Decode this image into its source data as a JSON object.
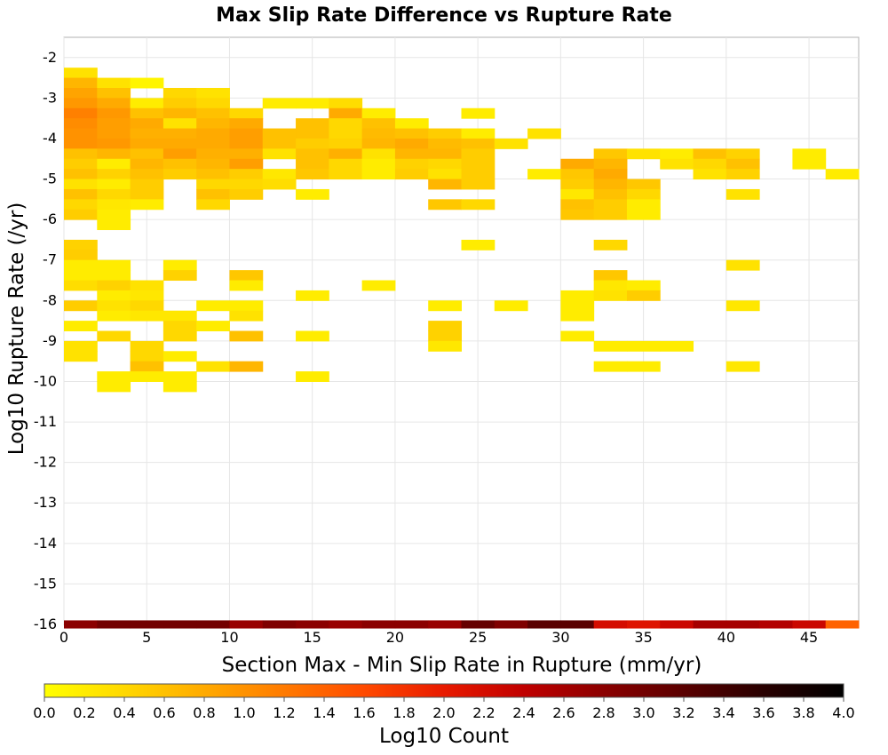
{
  "chart_data": {
    "type": "heatmap",
    "title": "Max Slip Rate Difference vs Rupture Rate",
    "xlabel": "Section Max - Min Slip Rate in Rupture (mm/yr)",
    "ylabel": "Log10 Rupture Rate (/yr)",
    "colorbar_label": "Log10 Count",
    "xlim": [
      0,
      48
    ],
    "ylim": [
      -16,
      -1.5
    ],
    "x_bin_width": 2,
    "y_bin_height": 0.25,
    "xticks": [
      0,
      5,
      10,
      15,
      20,
      25,
      30,
      35,
      40,
      45
    ],
    "yticks": [
      -2,
      -3,
      -4,
      -5,
      -6,
      -7,
      -8,
      -9,
      -10,
      -11,
      -12,
      -13,
      -14,
      -15,
      -16
    ],
    "colorbar_range": [
      0.0,
      4.0
    ],
    "colorbar_ticks": [
      "0.0",
      "0.2",
      "0.4",
      "0.6",
      "0.8",
      "1.0",
      "1.2",
      "1.4",
      "1.6",
      "1.8",
      "2.0",
      "2.2",
      "2.4",
      "2.6",
      "2.8",
      "3.0",
      "3.2",
      "3.4",
      "3.6",
      "3.8",
      "4.0"
    ],
    "grid": true,
    "colormap": [
      "#ffff00",
      "#ffd800",
      "#ffaa00",
      "#ff7a00",
      "#ff4a00",
      "#e81a00",
      "#c00000",
      "#8b0000",
      "#5a0000",
      "#280000",
      "#000000"
    ],
    "cells": [
      [
        0,
        -2.25,
        0.3
      ],
      [
        0,
        -2.5,
        0.7
      ],
      [
        2,
        -2.5,
        0.3
      ],
      [
        4,
        -2.5,
        0.1
      ],
      [
        0,
        -2.75,
        0.85
      ],
      [
        2,
        -2.75,
        0.6
      ],
      [
        6,
        -2.75,
        0.4
      ],
      [
        8,
        -2.75,
        0.3
      ],
      [
        0,
        -3.0,
        0.95
      ],
      [
        2,
        -3.0,
        0.8
      ],
      [
        4,
        -3.0,
        0.2
      ],
      [
        6,
        -3.0,
        0.5
      ],
      [
        8,
        -3.0,
        0.4
      ],
      [
        12,
        -3.0,
        0.2
      ],
      [
        14,
        -3.0,
        0.2
      ],
      [
        16,
        -3.0,
        0.35
      ],
      [
        0,
        -3.25,
        1.15
      ],
      [
        2,
        -3.25,
        0.95
      ],
      [
        4,
        -3.25,
        0.6
      ],
      [
        6,
        -3.25,
        0.7
      ],
      [
        8,
        -3.25,
        0.6
      ],
      [
        10,
        -3.25,
        0.4
      ],
      [
        16,
        -3.25,
        0.8
      ],
      [
        18,
        -3.25,
        0.2
      ],
      [
        24,
        -3.25,
        0.2
      ],
      [
        0,
        -3.5,
        1.05
      ],
      [
        2,
        -3.5,
        0.9
      ],
      [
        4,
        -3.5,
        0.8
      ],
      [
        6,
        -3.5,
        0.3
      ],
      [
        8,
        -3.5,
        0.7
      ],
      [
        10,
        -3.5,
        0.8
      ],
      [
        14,
        -3.5,
        0.6
      ],
      [
        16,
        -3.5,
        0.4
      ],
      [
        18,
        -3.5,
        0.6
      ],
      [
        20,
        -3.5,
        0.2
      ],
      [
        0,
        -3.75,
        1.0
      ],
      [
        2,
        -3.75,
        0.9
      ],
      [
        4,
        -3.75,
        0.75
      ],
      [
        6,
        -3.75,
        0.75
      ],
      [
        8,
        -3.75,
        0.8
      ],
      [
        10,
        -3.75,
        0.9
      ],
      [
        12,
        -3.75,
        0.6
      ],
      [
        14,
        -3.75,
        0.6
      ],
      [
        16,
        -3.75,
        0.4
      ],
      [
        18,
        -3.75,
        0.65
      ],
      [
        20,
        -3.75,
        0.6
      ],
      [
        22,
        -3.75,
        0.5
      ],
      [
        24,
        -3.75,
        0.2
      ],
      [
        28,
        -3.75,
        0.3
      ],
      [
        0,
        -4.0,
        1.0
      ],
      [
        2,
        -4.0,
        0.95
      ],
      [
        4,
        -4.0,
        0.8
      ],
      [
        6,
        -4.0,
        0.8
      ],
      [
        8,
        -4.0,
        0.8
      ],
      [
        10,
        -4.0,
        0.9
      ],
      [
        12,
        -4.0,
        0.6
      ],
      [
        14,
        -4.0,
        0.5
      ],
      [
        16,
        -4.0,
        0.45
      ],
      [
        18,
        -4.0,
        0.7
      ],
      [
        20,
        -4.0,
        0.8
      ],
      [
        22,
        -4.0,
        0.65
      ],
      [
        24,
        -4.0,
        0.6
      ],
      [
        26,
        -4.0,
        0.3
      ],
      [
        0,
        -4.25,
        0.6
      ],
      [
        2,
        -4.25,
        0.7
      ],
      [
        4,
        -4.25,
        0.6
      ],
      [
        6,
        -4.25,
        0.9
      ],
      [
        8,
        -4.25,
        0.75
      ],
      [
        10,
        -4.25,
        0.75
      ],
      [
        12,
        -4.25,
        0.3
      ],
      [
        14,
        -4.25,
        0.6
      ],
      [
        16,
        -4.25,
        0.75
      ],
      [
        18,
        -4.25,
        0.3
      ],
      [
        20,
        -4.25,
        0.7
      ],
      [
        22,
        -4.25,
        0.7
      ],
      [
        24,
        -4.25,
        0.5
      ],
      [
        32,
        -4.25,
        0.55
      ],
      [
        34,
        -4.25,
        0.3
      ],
      [
        36,
        -4.25,
        0.2
      ],
      [
        38,
        -4.25,
        0.6
      ],
      [
        40,
        -4.25,
        0.45
      ],
      [
        44,
        -4.25,
        0.2
      ],
      [
        0,
        -4.5,
        0.5
      ],
      [
        2,
        -4.5,
        0.2
      ],
      [
        4,
        -4.5,
        0.7
      ],
      [
        6,
        -4.5,
        0.6
      ],
      [
        8,
        -4.5,
        0.7
      ],
      [
        10,
        -4.5,
        0.9
      ],
      [
        14,
        -4.5,
        0.6
      ],
      [
        16,
        -4.5,
        0.4
      ],
      [
        18,
        -4.5,
        0.2
      ],
      [
        20,
        -4.5,
        0.45
      ],
      [
        22,
        -4.5,
        0.4
      ],
      [
        24,
        -4.5,
        0.5
      ],
      [
        30,
        -4.5,
        0.8
      ],
      [
        32,
        -4.5,
        0.7
      ],
      [
        36,
        -4.5,
        0.3
      ],
      [
        38,
        -4.5,
        0.4
      ],
      [
        40,
        -4.5,
        0.6
      ],
      [
        44,
        -4.5,
        0.2
      ],
      [
        0,
        -4.75,
        0.6
      ],
      [
        2,
        -4.75,
        0.45
      ],
      [
        4,
        -4.75,
        0.6
      ],
      [
        6,
        -4.75,
        0.5
      ],
      [
        8,
        -4.75,
        0.6
      ],
      [
        10,
        -4.75,
        0.5
      ],
      [
        12,
        -4.75,
        0.25
      ],
      [
        14,
        -4.75,
        0.55
      ],
      [
        16,
        -4.75,
        0.4
      ],
      [
        18,
        -4.75,
        0.2
      ],
      [
        20,
        -4.75,
        0.5
      ],
      [
        22,
        -4.75,
        0.3
      ],
      [
        24,
        -4.75,
        0.5
      ],
      [
        28,
        -4.75,
        0.2
      ],
      [
        30,
        -4.75,
        0.55
      ],
      [
        32,
        -4.75,
        0.8
      ],
      [
        38,
        -4.75,
        0.3
      ],
      [
        40,
        -4.75,
        0.45
      ],
      [
        46,
        -4.75,
        0.2
      ],
      [
        0,
        -5.0,
        0.3
      ],
      [
        2,
        -5.0,
        0.2
      ],
      [
        4,
        -5.0,
        0.5
      ],
      [
        8,
        -5.0,
        0.4
      ],
      [
        10,
        -5.0,
        0.4
      ],
      [
        12,
        -5.0,
        0.35
      ],
      [
        22,
        -5.0,
        0.7
      ],
      [
        24,
        -5.0,
        0.5
      ],
      [
        30,
        -5.0,
        0.5
      ],
      [
        32,
        -5.0,
        0.7
      ],
      [
        34,
        -5.0,
        0.55
      ],
      [
        0,
        -5.25,
        0.6
      ],
      [
        2,
        -5.25,
        0.4
      ],
      [
        4,
        -5.25,
        0.5
      ],
      [
        8,
        -5.25,
        0.6
      ],
      [
        10,
        -5.25,
        0.5
      ],
      [
        14,
        -5.25,
        0.2
      ],
      [
        30,
        -5.25,
        0.25
      ],
      [
        32,
        -5.25,
        0.6
      ],
      [
        34,
        -5.25,
        0.4
      ],
      [
        40,
        -5.25,
        0.3
      ],
      [
        0,
        -5.5,
        0.4
      ],
      [
        2,
        -5.5,
        0.25
      ],
      [
        4,
        -5.5,
        0.2
      ],
      [
        8,
        -5.5,
        0.4
      ],
      [
        22,
        -5.5,
        0.55
      ],
      [
        24,
        -5.5,
        0.4
      ],
      [
        30,
        -5.5,
        0.6
      ],
      [
        32,
        -5.5,
        0.5
      ],
      [
        34,
        -5.5,
        0.2
      ],
      [
        0,
        -5.75,
        0.5
      ],
      [
        2,
        -5.75,
        0.2
      ],
      [
        30,
        -5.75,
        0.55
      ],
      [
        32,
        -5.75,
        0.5
      ],
      [
        34,
        -5.75,
        0.2
      ],
      [
        2,
        -6.0,
        0.2
      ],
      [
        0,
        -6.5,
        0.45
      ],
      [
        24,
        -6.5,
        0.2
      ],
      [
        32,
        -6.5,
        0.4
      ],
      [
        0,
        -6.75,
        0.5
      ],
      [
        0,
        -7.0,
        0.2
      ],
      [
        2,
        -7.0,
        0.2
      ],
      [
        6,
        -7.0,
        0.2
      ],
      [
        40,
        -7.0,
        0.3
      ],
      [
        0,
        -7.25,
        0.2
      ],
      [
        2,
        -7.25,
        0.2
      ],
      [
        6,
        -7.25,
        0.45
      ],
      [
        10,
        -7.25,
        0.55
      ],
      [
        32,
        -7.25,
        0.55
      ],
      [
        0,
        -7.5,
        0.35
      ],
      [
        2,
        -7.5,
        0.45
      ],
      [
        4,
        -7.5,
        0.3
      ],
      [
        10,
        -7.5,
        0.2
      ],
      [
        18,
        -7.5,
        0.2
      ],
      [
        32,
        -7.5,
        0.25
      ],
      [
        34,
        -7.5,
        0.2
      ],
      [
        2,
        -7.75,
        0.2
      ],
      [
        4,
        -7.75,
        0.25
      ],
      [
        14,
        -7.75,
        0.2
      ],
      [
        30,
        -7.75,
        0.2
      ],
      [
        32,
        -7.75,
        0.3
      ],
      [
        34,
        -7.75,
        0.5
      ],
      [
        0,
        -8.0,
        0.5
      ],
      [
        2,
        -8.0,
        0.3
      ],
      [
        4,
        -8.0,
        0.4
      ],
      [
        8,
        -8.0,
        0.2
      ],
      [
        10,
        -8.0,
        0.2
      ],
      [
        22,
        -8.0,
        0.2
      ],
      [
        26,
        -8.0,
        0.2
      ],
      [
        30,
        -8.0,
        0.2
      ],
      [
        40,
        -8.0,
        0.25
      ],
      [
        2,
        -8.25,
        0.2
      ],
      [
        4,
        -8.25,
        0.25
      ],
      [
        6,
        -8.25,
        0.25
      ],
      [
        10,
        -8.25,
        0.3
      ],
      [
        30,
        -8.25,
        0.2
      ],
      [
        0,
        -8.5,
        0.2
      ],
      [
        6,
        -8.5,
        0.4
      ],
      [
        8,
        -8.5,
        0.2
      ],
      [
        22,
        -8.5,
        0.45
      ],
      [
        2,
        -8.75,
        0.4
      ],
      [
        6,
        -8.75,
        0.4
      ],
      [
        10,
        -8.75,
        0.6
      ],
      [
        14,
        -8.75,
        0.2
      ],
      [
        22,
        -8.75,
        0.45
      ],
      [
        30,
        -8.75,
        0.2
      ],
      [
        0,
        -9.0,
        0.3
      ],
      [
        4,
        -9.0,
        0.4
      ],
      [
        22,
        -9.0,
        0.25
      ],
      [
        32,
        -9.0,
        0.2
      ],
      [
        34,
        -9.0,
        0.2
      ],
      [
        36,
        -9.0,
        0.2
      ],
      [
        0,
        -9.25,
        0.3
      ],
      [
        4,
        -9.25,
        0.4
      ],
      [
        6,
        -9.25,
        0.2
      ],
      [
        4,
        -9.5,
        0.6
      ],
      [
        8,
        -9.5,
        0.3
      ],
      [
        10,
        -9.5,
        0.7
      ],
      [
        32,
        -9.5,
        0.2
      ],
      [
        34,
        -9.5,
        0.2
      ],
      [
        40,
        -9.5,
        0.25
      ],
      [
        2,
        -9.75,
        0.2
      ],
      [
        4,
        -9.75,
        0.2
      ],
      [
        6,
        -9.75,
        0.2
      ],
      [
        14,
        -9.75,
        0.2
      ],
      [
        2,
        -10.0,
        0.2
      ],
      [
        6,
        -10.0,
        0.2
      ]
    ],
    "bottom_row": {
      "y": -15.9,
      "cells": [
        [
          0,
          2.8
        ],
        [
          2,
          3.0
        ],
        [
          4,
          3.0
        ],
        [
          6,
          3.0
        ],
        [
          8,
          3.0
        ],
        [
          10,
          2.7
        ],
        [
          12,
          2.9
        ],
        [
          14,
          2.8
        ],
        [
          16,
          2.7
        ],
        [
          18,
          2.8
        ],
        [
          20,
          2.8
        ],
        [
          22,
          2.7
        ],
        [
          24,
          3.1
        ],
        [
          26,
          2.9
        ],
        [
          28,
          3.2
        ],
        [
          30,
          3.2
        ],
        [
          32,
          2.2
        ],
        [
          34,
          2.1
        ],
        [
          36,
          2.3
        ],
        [
          38,
          2.6
        ],
        [
          40,
          2.6
        ],
        [
          42,
          2.5
        ],
        [
          44,
          2.3
        ],
        [
          46,
          1.4
        ]
      ]
    }
  }
}
